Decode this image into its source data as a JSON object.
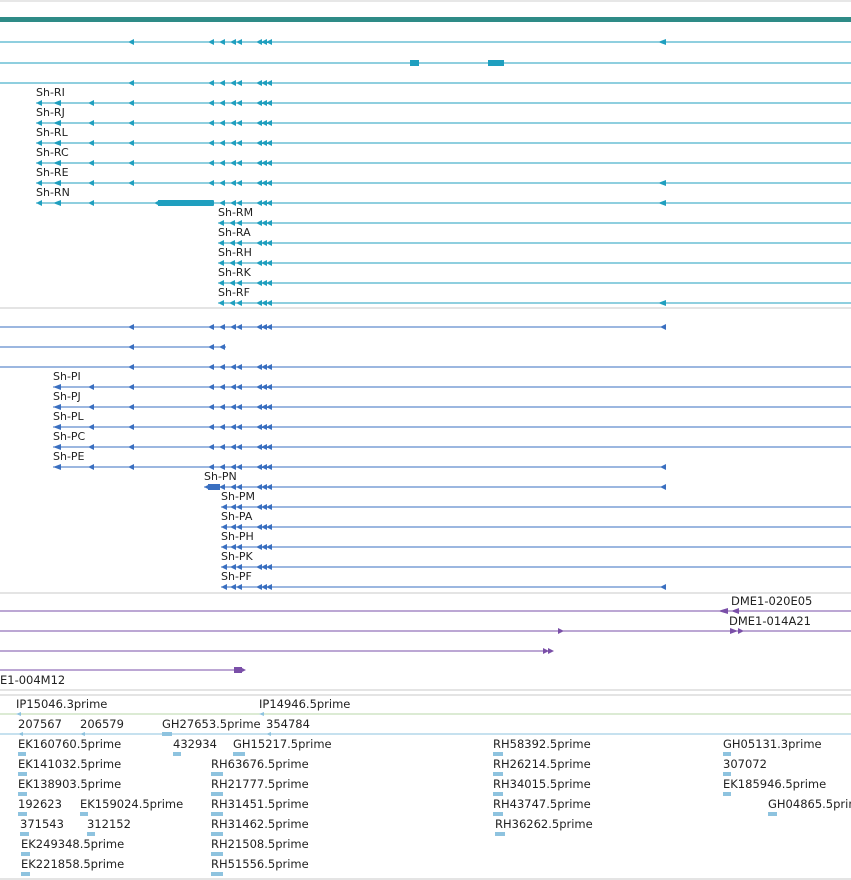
{
  "colors": {
    "header_bar": "#2e8b87",
    "gene_teal": "#1f9fbf",
    "gene_blue": "#3a6fc0",
    "clone_purple": "#7a4fa8",
    "est_light": "#8ec3df",
    "separator": "#c8c8c8"
  },
  "gene_model_track": {
    "icon": "leftward-arrow-transcript",
    "transcripts": [
      {
        "label": ""
      },
      {
        "label": ""
      },
      {
        "label": ""
      },
      {
        "label": "Sh-RI"
      },
      {
        "label": "Sh-RJ"
      },
      {
        "label": "Sh-RL"
      },
      {
        "label": "Sh-RC"
      },
      {
        "label": "Sh-RE"
      },
      {
        "label": "Sh-RN"
      },
      {
        "label": "Sh-RM"
      },
      {
        "label": "Sh-RA"
      },
      {
        "label": "Sh-RH"
      },
      {
        "label": "Sh-RK"
      },
      {
        "label": "Sh-RF"
      }
    ]
  },
  "protein_track": {
    "transcripts": [
      {
        "label": ""
      },
      {
        "label": ""
      },
      {
        "label": ""
      },
      {
        "label": "Sh-PI"
      },
      {
        "label": "Sh-PJ"
      },
      {
        "label": "Sh-PL"
      },
      {
        "label": "Sh-PC"
      },
      {
        "label": "Sh-PE"
      },
      {
        "label": "Sh-PN"
      },
      {
        "label": "Sh-PM"
      },
      {
        "label": "Sh-PA"
      },
      {
        "label": "Sh-PH"
      },
      {
        "label": "Sh-PK"
      },
      {
        "label": "Sh-PF"
      }
    ]
  },
  "clone_track": {
    "clones": [
      {
        "label": "DME1-020E05"
      },
      {
        "label": "DME1-014A21"
      },
      {
        "label": ""
      },
      {
        "label": "E1-004M12"
      }
    ]
  },
  "est_track": {
    "labels": [
      "IP15046.3prime",
      "IP14946.5prime",
      "207567",
      "206579",
      "GH27653.5prime",
      "354784",
      "EK160760.5prime",
      "432934",
      "GH15217.5prime",
      "RH58392.5prime",
      "GH05131.3prime",
      "EK141032.5prime",
      "RH63676.5prime",
      "RH26214.5prime",
      "307072",
      "EK138903.5prime",
      "RH21777.5prime",
      "RH34015.5prime",
      "EK185946.5prime",
      "192623",
      "EK159024.5prime",
      "RH31451.5prime",
      "RH43747.5prime",
      "GH04865.5prime",
      "371543",
      "312152",
      "RH31462.5prime",
      "RH36262.5prime",
      "EK249348.5prime",
      "RH21508.5prime",
      "EK221858.5prime",
      "RH51556.5prime"
    ]
  }
}
